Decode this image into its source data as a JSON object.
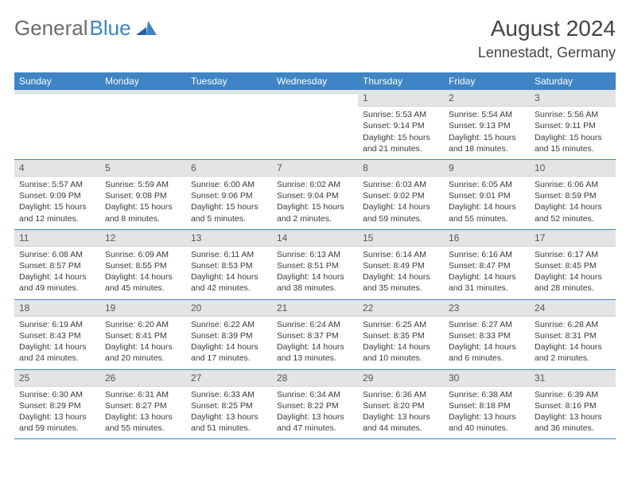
{
  "logo": {
    "part1": "General",
    "part2": "Blue"
  },
  "title": "August 2024",
  "location": "Lennestadt, Germany",
  "colors": {
    "header_bg": "#3f84c4",
    "daynum_bg": "#e4e4e4",
    "border": "#3f84c4",
    "text": "#3a3a3a",
    "title_text": "#444444"
  },
  "day_labels": [
    "Sunday",
    "Monday",
    "Tuesday",
    "Wednesday",
    "Thursday",
    "Friday",
    "Saturday"
  ],
  "weeks": [
    [
      {
        "n": "",
        "l1": "",
        "l2": "",
        "l3": ""
      },
      {
        "n": "",
        "l1": "",
        "l2": "",
        "l3": ""
      },
      {
        "n": "",
        "l1": "",
        "l2": "",
        "l3": ""
      },
      {
        "n": "",
        "l1": "",
        "l2": "",
        "l3": ""
      },
      {
        "n": "1",
        "l1": "Sunrise: 5:53 AM",
        "l2": "Sunset: 9:14 PM",
        "l3": "Daylight: 15 hours and 21 minutes."
      },
      {
        "n": "2",
        "l1": "Sunrise: 5:54 AM",
        "l2": "Sunset: 9:13 PM",
        "l3": "Daylight: 15 hours and 18 minutes."
      },
      {
        "n": "3",
        "l1": "Sunrise: 5:56 AM",
        "l2": "Sunset: 9:11 PM",
        "l3": "Daylight: 15 hours and 15 minutes."
      }
    ],
    [
      {
        "n": "4",
        "l1": "Sunrise: 5:57 AM",
        "l2": "Sunset: 9:09 PM",
        "l3": "Daylight: 15 hours and 12 minutes."
      },
      {
        "n": "5",
        "l1": "Sunrise: 5:59 AM",
        "l2": "Sunset: 9:08 PM",
        "l3": "Daylight: 15 hours and 8 minutes."
      },
      {
        "n": "6",
        "l1": "Sunrise: 6:00 AM",
        "l2": "Sunset: 9:06 PM",
        "l3": "Daylight: 15 hours and 5 minutes."
      },
      {
        "n": "7",
        "l1": "Sunrise: 6:02 AM",
        "l2": "Sunset: 9:04 PM",
        "l3": "Daylight: 15 hours and 2 minutes."
      },
      {
        "n": "8",
        "l1": "Sunrise: 6:03 AM",
        "l2": "Sunset: 9:02 PM",
        "l3": "Daylight: 14 hours and 59 minutes."
      },
      {
        "n": "9",
        "l1": "Sunrise: 6:05 AM",
        "l2": "Sunset: 9:01 PM",
        "l3": "Daylight: 14 hours and 55 minutes."
      },
      {
        "n": "10",
        "l1": "Sunrise: 6:06 AM",
        "l2": "Sunset: 8:59 PM",
        "l3": "Daylight: 14 hours and 52 minutes."
      }
    ],
    [
      {
        "n": "11",
        "l1": "Sunrise: 6:08 AM",
        "l2": "Sunset: 8:57 PM",
        "l3": "Daylight: 14 hours and 49 minutes."
      },
      {
        "n": "12",
        "l1": "Sunrise: 6:09 AM",
        "l2": "Sunset: 8:55 PM",
        "l3": "Daylight: 14 hours and 45 minutes."
      },
      {
        "n": "13",
        "l1": "Sunrise: 6:11 AM",
        "l2": "Sunset: 8:53 PM",
        "l3": "Daylight: 14 hours and 42 minutes."
      },
      {
        "n": "14",
        "l1": "Sunrise: 6:13 AM",
        "l2": "Sunset: 8:51 PM",
        "l3": "Daylight: 14 hours and 38 minutes."
      },
      {
        "n": "15",
        "l1": "Sunrise: 6:14 AM",
        "l2": "Sunset: 8:49 PM",
        "l3": "Daylight: 14 hours and 35 minutes."
      },
      {
        "n": "16",
        "l1": "Sunrise: 6:16 AM",
        "l2": "Sunset: 8:47 PM",
        "l3": "Daylight: 14 hours and 31 minutes."
      },
      {
        "n": "17",
        "l1": "Sunrise: 6:17 AM",
        "l2": "Sunset: 8:45 PM",
        "l3": "Daylight: 14 hours and 28 minutes."
      }
    ],
    [
      {
        "n": "18",
        "l1": "Sunrise: 6:19 AM",
        "l2": "Sunset: 8:43 PM",
        "l3": "Daylight: 14 hours and 24 minutes."
      },
      {
        "n": "19",
        "l1": "Sunrise: 6:20 AM",
        "l2": "Sunset: 8:41 PM",
        "l3": "Daylight: 14 hours and 20 minutes."
      },
      {
        "n": "20",
        "l1": "Sunrise: 6:22 AM",
        "l2": "Sunset: 8:39 PM",
        "l3": "Daylight: 14 hours and 17 minutes."
      },
      {
        "n": "21",
        "l1": "Sunrise: 6:24 AM",
        "l2": "Sunset: 8:37 PM",
        "l3": "Daylight: 14 hours and 13 minutes."
      },
      {
        "n": "22",
        "l1": "Sunrise: 6:25 AM",
        "l2": "Sunset: 8:35 PM",
        "l3": "Daylight: 14 hours and 10 minutes."
      },
      {
        "n": "23",
        "l1": "Sunrise: 6:27 AM",
        "l2": "Sunset: 8:33 PM",
        "l3": "Daylight: 14 hours and 6 minutes."
      },
      {
        "n": "24",
        "l1": "Sunrise: 6:28 AM",
        "l2": "Sunset: 8:31 PM",
        "l3": "Daylight: 14 hours and 2 minutes."
      }
    ],
    [
      {
        "n": "25",
        "l1": "Sunrise: 6:30 AM",
        "l2": "Sunset: 8:29 PM",
        "l3": "Daylight: 13 hours and 59 minutes."
      },
      {
        "n": "26",
        "l1": "Sunrise: 6:31 AM",
        "l2": "Sunset: 8:27 PM",
        "l3": "Daylight: 13 hours and 55 minutes."
      },
      {
        "n": "27",
        "l1": "Sunrise: 6:33 AM",
        "l2": "Sunset: 8:25 PM",
        "l3": "Daylight: 13 hours and 51 minutes."
      },
      {
        "n": "28",
        "l1": "Sunrise: 6:34 AM",
        "l2": "Sunset: 8:22 PM",
        "l3": "Daylight: 13 hours and 47 minutes."
      },
      {
        "n": "29",
        "l1": "Sunrise: 6:36 AM",
        "l2": "Sunset: 8:20 PM",
        "l3": "Daylight: 13 hours and 44 minutes."
      },
      {
        "n": "30",
        "l1": "Sunrise: 6:38 AM",
        "l2": "Sunset: 8:18 PM",
        "l3": "Daylight: 13 hours and 40 minutes."
      },
      {
        "n": "31",
        "l1": "Sunrise: 6:39 AM",
        "l2": "Sunset: 8:16 PM",
        "l3": "Daylight: 13 hours and 36 minutes."
      }
    ]
  ]
}
